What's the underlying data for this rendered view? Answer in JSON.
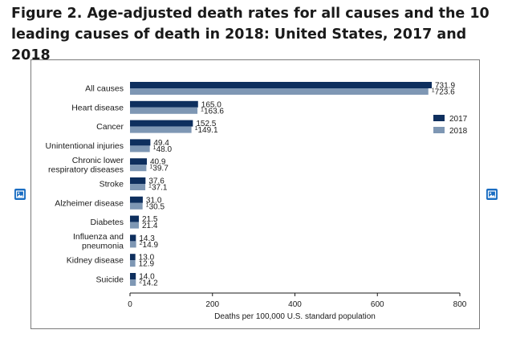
{
  "figure": {
    "title": "Figure 2. Age-adjusted death rates for all causes and the 10 leading causes of death in 2018: United States, 2017 and 2018"
  },
  "icons": {
    "left": "image-icon",
    "right": "image-icon"
  },
  "chart_data": {
    "type": "bar",
    "orientation": "horizontal",
    "categories": [
      "All causes",
      "Heart disease",
      "Cancer",
      "Unintentional injuries",
      "Chronic lower respiratory diseases",
      "Stroke",
      "Alzheimer disease",
      "Diabetes",
      "Influenza and pneumonia",
      "Kidney disease",
      "Suicide"
    ],
    "category_lines": [
      [
        "All causes"
      ],
      [
        "Heart disease"
      ],
      [
        "Cancer"
      ],
      [
        "Unintentional injuries"
      ],
      [
        "Chronic lower",
        "respiratory diseases"
      ],
      [
        "Stroke"
      ],
      [
        "Alzheimer disease"
      ],
      [
        "Diabetes"
      ],
      [
        "Influenza and",
        "pneumonia"
      ],
      [
        "Kidney disease"
      ],
      [
        "Suicide"
      ]
    ],
    "series": [
      {
        "name": "2017",
        "color": "#0e2f5e",
        "values": [
          731.9,
          165.0,
          152.5,
          49.4,
          40.9,
          37.6,
          31.0,
          21.5,
          14.3,
          13.0,
          14.0
        ],
        "labels": [
          "731.9",
          "165.0",
          "152.5",
          "49.4",
          "40.9",
          "37.6",
          "31.0",
          "21.5",
          "14.3",
          "13.0",
          "14.0"
        ],
        "footnotes": [
          "",
          "",
          "",
          "",
          "",
          "",
          "",
          "",
          "",
          "",
          ""
        ]
      },
      {
        "name": "2018",
        "color": "#7e97b4",
        "values": [
          723.6,
          163.6,
          149.1,
          48.0,
          39.7,
          37.1,
          30.5,
          21.4,
          14.9,
          12.9,
          14.2
        ],
        "labels": [
          "723.6",
          "163.6",
          "149.1",
          "48.0",
          "39.7",
          "37.1",
          "30.5",
          "21.4",
          "14.9",
          "12.9",
          "14.2"
        ],
        "footnotes": [
          "1",
          "1",
          "1",
          "1",
          "1",
          "1",
          "1",
          "",
          "2",
          "",
          "2"
        ]
      }
    ],
    "xlim": [
      0,
      800
    ],
    "xticks": [
      "0",
      "200",
      "400",
      "600",
      "800"
    ],
    "xtick_values": [
      0,
      200,
      400,
      600,
      800
    ],
    "xlabel": "Deaths per 100,000 U.S. standard population",
    "ylabel": "",
    "legend_position": "right",
    "grid": false
  }
}
